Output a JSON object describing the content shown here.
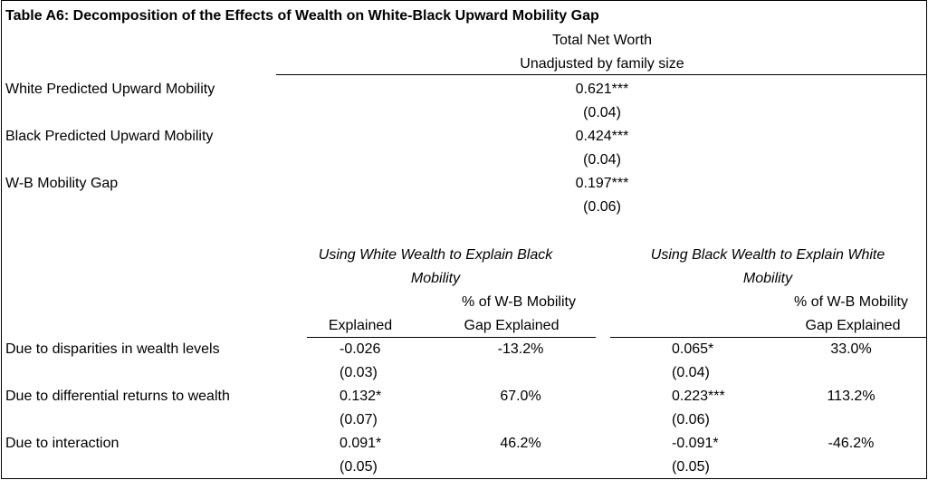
{
  "title": "Table A6: Decomposition of the Effects of Wealth on White-Black Upward Mobility Gap",
  "top_header": {
    "line1": "Total Net Worth",
    "line2": "Unadjusted by family size"
  },
  "top_rows": [
    {
      "label": "White Predicted Upward Mobility",
      "value": "0.621***",
      "se": "(0.04)"
    },
    {
      "label": "Black Predicted Upward Mobility",
      "value": "0.424***",
      "se": "(0.04)"
    },
    {
      "label": "W-B Mobility Gap",
      "value": "0.197***",
      "se": "(0.06)"
    }
  ],
  "groups": [
    {
      "line1": "Using White Wealth to Explain Black",
      "line2": "Mobility"
    },
    {
      "line1": "Using Black Wealth to Explain White",
      "line2": "Mobility"
    }
  ],
  "col_headers": {
    "explained": "Explained",
    "pct_line1": "% of W-B Mobility",
    "pct_line2": "Gap Explained"
  },
  "decomp_rows": [
    {
      "label": "Due to disparities in wealth levels",
      "white": {
        "value": "-0.026",
        "se": "(0.03)",
        "pct": "-13.2%"
      },
      "black": {
        "value": "0.065*",
        "se": "(0.04)",
        "pct": "33.0%"
      }
    },
    {
      "label": "Due to differential returns to wealth",
      "white": {
        "value": "0.132*",
        "se": "(0.07)",
        "pct": "67.0%"
      },
      "black": {
        "value": "0.223***",
        "se": "(0.06)",
        "pct": "113.2%"
      }
    },
    {
      "label": "Due to interaction",
      "white": {
        "value": "0.091*",
        "se": "(0.05)",
        "pct": "46.2%"
      },
      "black": {
        "value": "-0.091*",
        "se": "(0.05)",
        "pct": "-46.2%"
      }
    }
  ]
}
